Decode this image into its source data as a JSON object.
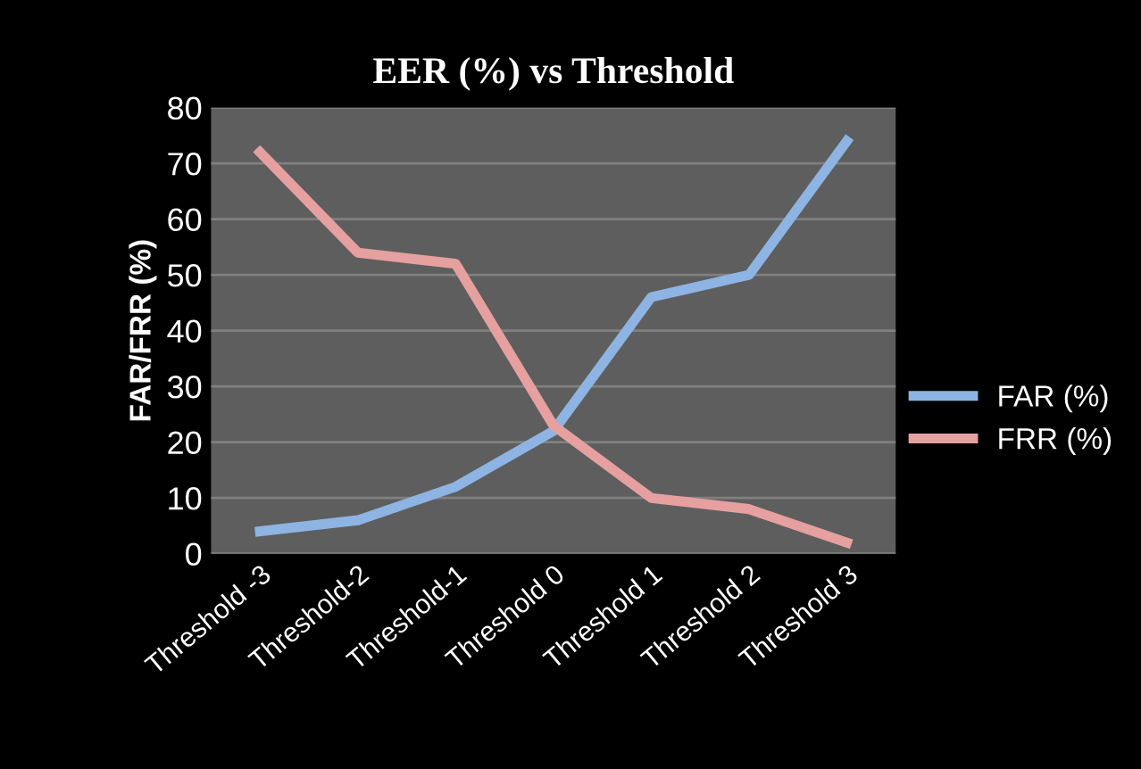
{
  "chart_data": {
    "type": "line",
    "title": "EER (%) vs Threshold",
    "ylabel": "FAR/FRR (%)",
    "categories": [
      "Threshold -3",
      "Threshold-2",
      "Threshold-1",
      "Threshold 0",
      "Threshold 1",
      "Threshold 2",
      "Threshold 3"
    ],
    "series": [
      {
        "name": "FAR (%)",
        "color": "#8db4e2",
        "values": [
          4,
          6,
          12,
          22,
          46,
          50,
          74
        ]
      },
      {
        "name": "FRR (%)",
        "color": "#e6a0a0",
        "values": [
          72,
          54,
          52,
          23,
          10,
          8,
          2
        ]
      }
    ],
    "ylim": [
      0,
      80
    ],
    "yticks": [
      0,
      10,
      20,
      30,
      40,
      50,
      60,
      70,
      80
    ],
    "grid": "y",
    "legend": "right",
    "marker": "none",
    "line_style": "solid"
  }
}
